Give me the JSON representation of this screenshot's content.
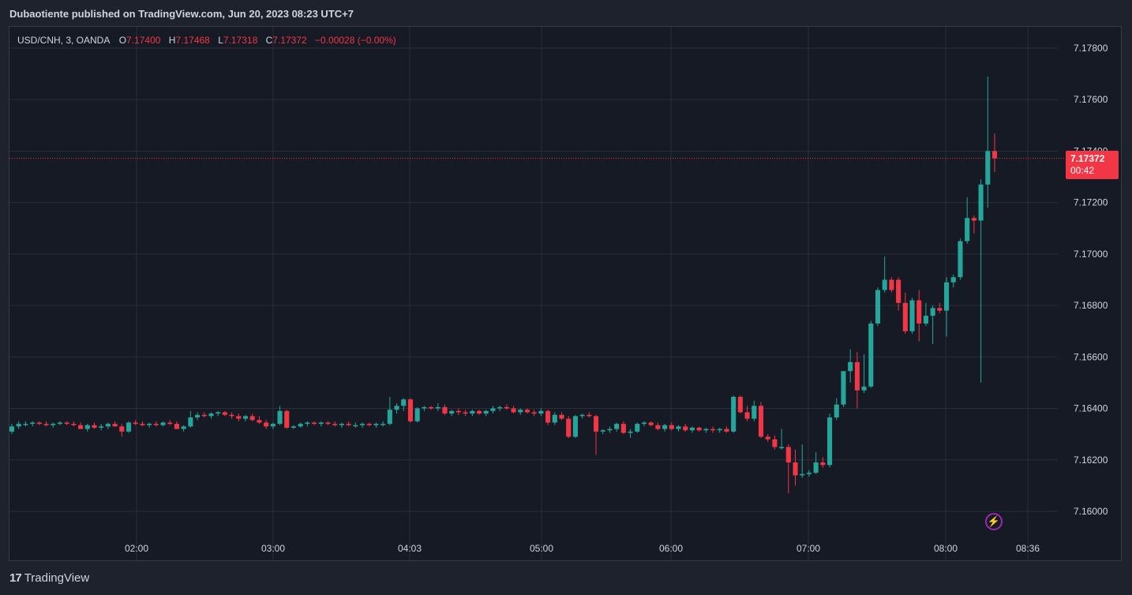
{
  "header": {
    "published_line": "Dubaotiente published on TradingView.com, Jun 20, 2023 08:23 UTC+7"
  },
  "legend": {
    "symbol": "USD/CNH, 3, OANDA",
    "o_label": "O",
    "o_value": "7.17400",
    "h_label": "H",
    "h_value": "7.17468",
    "l_label": "L",
    "l_value": "7.17318",
    "c_label": "C",
    "c_value": "7.17372",
    "change": "−0.00028 (−0.00%)"
  },
  "price_tag": {
    "price": "7.17372",
    "countdown": "00:42"
  },
  "footer": {
    "brand": "TradingView",
    "logo_glyph": "17"
  },
  "icons": {
    "bolt": "lightning-icon"
  },
  "colors": {
    "up": "#26a69a",
    "down": "#f23645",
    "background": "#161a25",
    "grid": "#2a2e39"
  },
  "chart_data": {
    "type": "candlestick",
    "title": "",
    "xlabel": "",
    "ylabel": "",
    "ylim": [
      7.1594,
      7.1792
    ],
    "y_ticks": [
      "7.17800",
      "7.17600",
      "7.17400",
      "7.17200",
      "7.17000",
      "7.16800",
      "7.16600",
      "7.16400",
      "7.16200",
      "7.16000"
    ],
    "x_ticks": [
      "02:00",
      "03:00",
      "04:03",
      "05:00",
      "06:00",
      "07:00",
      "08:00",
      "08:36"
    ],
    "last_price": 7.17372,
    "grid": true,
    "legend_position": "top-left",
    "candles": [
      [
        7.1631,
        7.1634,
        7.163,
        7.1633
      ],
      [
        7.1633,
        7.1635,
        7.1632,
        7.1634
      ],
      [
        7.1634,
        7.1635,
        7.1633,
        7.1634
      ],
      [
        7.1634,
        7.1635,
        7.1633,
        7.16345
      ],
      [
        7.16345,
        7.1635,
        7.16335,
        7.1634
      ],
      [
        7.1634,
        7.1635,
        7.1633,
        7.16335
      ],
      [
        7.16335,
        7.16345,
        7.16325,
        7.1634
      ],
      [
        7.1634,
        7.1635,
        7.16335,
        7.16345
      ],
      [
        7.16345,
        7.1635,
        7.16335,
        7.1634
      ],
      [
        7.1634,
        7.1635,
        7.1633,
        7.16335
      ],
      [
        7.16335,
        7.16345,
        7.1632,
        7.1632
      ],
      [
        7.1632,
        7.1634,
        7.1631,
        7.16335
      ],
      [
        7.16335,
        7.16345,
        7.1632,
        7.16325
      ],
      [
        7.16325,
        7.1634,
        7.16315,
        7.1633
      ],
      [
        7.1633,
        7.16345,
        7.1632,
        7.1634
      ],
      [
        7.1634,
        7.1635,
        7.1633,
        7.1633
      ],
      [
        7.1633,
        7.1634,
        7.1629,
        7.1631
      ],
      [
        7.1631,
        7.1635,
        7.16305,
        7.16345
      ],
      [
        7.16345,
        7.16355,
        7.16335,
        7.1634
      ],
      [
        7.1634,
        7.1635,
        7.1633,
        7.16335
      ],
      [
        7.16335,
        7.16345,
        7.16325,
        7.1634
      ],
      [
        7.1634,
        7.1635,
        7.1633,
        7.16335
      ],
      [
        7.16335,
        7.1635,
        7.1633,
        7.16345
      ],
      [
        7.16345,
        7.16355,
        7.16335,
        7.1634
      ],
      [
        7.1634,
        7.1635,
        7.1632,
        7.1632
      ],
      [
        7.1632,
        7.16335,
        7.1631,
        7.1633
      ],
      [
        7.1633,
        7.1639,
        7.16325,
        7.16365
      ],
      [
        7.16365,
        7.16385,
        7.16355,
        7.16375
      ],
      [
        7.16375,
        7.16385,
        7.16365,
        7.1637
      ],
      [
        7.1637,
        7.16385,
        7.1636,
        7.1638
      ],
      [
        7.1638,
        7.1639,
        7.1637,
        7.16385
      ],
      [
        7.16385,
        7.1639,
        7.1637,
        7.16375
      ],
      [
        7.16375,
        7.16385,
        7.1636,
        7.1637
      ],
      [
        7.1637,
        7.1638,
        7.1635,
        7.1636
      ],
      [
        7.1636,
        7.16375,
        7.1635,
        7.1637
      ],
      [
        7.1637,
        7.1638,
        7.1635,
        7.16355
      ],
      [
        7.16355,
        7.1637,
        7.1634,
        7.16345
      ],
      [
        7.16345,
        7.16355,
        7.1632,
        7.1633
      ],
      [
        7.1633,
        7.16345,
        7.1632,
        7.1634
      ],
      [
        7.1634,
        7.1641,
        7.16335,
        7.1639
      ],
      [
        7.1639,
        7.16395,
        7.1632,
        7.16325
      ],
      [
        7.16325,
        7.16335,
        7.1632,
        7.1633
      ],
      [
        7.1633,
        7.16345,
        7.16325,
        7.1634
      ],
      [
        7.1634,
        7.1635,
        7.1633,
        7.16345
      ],
      [
        7.16345,
        7.1635,
        7.16335,
        7.1634
      ],
      [
        7.1634,
        7.1635,
        7.1633,
        7.16345
      ],
      [
        7.16345,
        7.1635,
        7.16335,
        7.1634
      ],
      [
        7.1634,
        7.1635,
        7.1633,
        7.16335
      ],
      [
        7.16335,
        7.16345,
        7.16325,
        7.1634
      ],
      [
        7.1634,
        7.1635,
        7.1633,
        7.16335
      ],
      [
        7.16335,
        7.16345,
        7.16325,
        7.16335
      ],
      [
        7.16335,
        7.16345,
        7.16325,
        7.1634
      ],
      [
        7.1634,
        7.16345,
        7.1633,
        7.16335
      ],
      [
        7.16335,
        7.16345,
        7.16325,
        7.1634
      ],
      [
        7.1634,
        7.1635,
        7.1633,
        7.1634
      ],
      [
        7.1634,
        7.16445,
        7.16335,
        7.16395
      ],
      [
        7.16395,
        7.1642,
        7.1638,
        7.1641
      ],
      [
        7.1641,
        7.1644,
        7.1639,
        7.16435
      ],
      [
        7.16435,
        7.1644,
        7.16345,
        7.1635
      ],
      [
        7.1635,
        7.16405,
        7.16345,
        7.164
      ],
      [
        7.164,
        7.1641,
        7.1639,
        7.16405
      ],
      [
        7.16405,
        7.1641,
        7.16395,
        7.164
      ],
      [
        7.164,
        7.1642,
        7.1639,
        7.16405
      ],
      [
        7.16405,
        7.16415,
        7.16375,
        7.1638
      ],
      [
        7.1638,
        7.16395,
        7.1637,
        7.1639
      ],
      [
        7.1639,
        7.164,
        7.16375,
        7.16385
      ],
      [
        7.16385,
        7.16395,
        7.1637,
        7.1638
      ],
      [
        7.1638,
        7.16395,
        7.1637,
        7.1639
      ],
      [
        7.1639,
        7.16395,
        7.16375,
        7.1638
      ],
      [
        7.1638,
        7.16395,
        7.1637,
        7.1639
      ],
      [
        7.1639,
        7.1641,
        7.1638,
        7.164
      ],
      [
        7.164,
        7.1641,
        7.1639,
        7.16405
      ],
      [
        7.16405,
        7.16415,
        7.16395,
        7.164
      ],
      [
        7.164,
        7.1641,
        7.1638,
        7.16385
      ],
      [
        7.16385,
        7.164,
        7.16375,
        7.16395
      ],
      [
        7.16395,
        7.164,
        7.1638,
        7.16385
      ],
      [
        7.16385,
        7.16395,
        7.1637,
        7.1638
      ],
      [
        7.1638,
        7.164,
        7.1637,
        7.1639
      ],
      [
        7.1639,
        7.16395,
        7.16335,
        7.16345
      ],
      [
        7.16345,
        7.16385,
        7.16335,
        7.16375
      ],
      [
        7.16375,
        7.16385,
        7.16355,
        7.1636
      ],
      [
        7.1636,
        7.1637,
        7.16285,
        7.1629
      ],
      [
        7.1629,
        7.16375,
        7.16285,
        7.1637
      ],
      [
        7.1637,
        7.1638,
        7.1636,
        7.16375
      ],
      [
        7.16375,
        7.16385,
        7.16365,
        7.1637
      ],
      [
        7.1637,
        7.16375,
        7.1622,
        7.1631
      ],
      [
        7.1631,
        7.1632,
        7.163,
        7.16315
      ],
      [
        7.16315,
        7.1633,
        7.16305,
        7.1632
      ],
      [
        7.1632,
        7.16345,
        7.1631,
        7.1634
      ],
      [
        7.1634,
        7.1635,
        7.163,
        7.16305
      ],
      [
        7.16305,
        7.1632,
        7.16285,
        7.1631
      ],
      [
        7.1631,
        7.16345,
        7.16305,
        7.1634
      ],
      [
        7.1634,
        7.1635,
        7.1633,
        7.16345
      ],
      [
        7.16345,
        7.1635,
        7.1633,
        7.16335
      ],
      [
        7.16335,
        7.16345,
        7.16315,
        7.1632
      ],
      [
        7.1632,
        7.1634,
        7.1631,
        7.16335
      ],
      [
        7.16335,
        7.16345,
        7.16315,
        7.1632
      ],
      [
        7.1632,
        7.16335,
        7.1631,
        7.1633
      ],
      [
        7.1633,
        7.1634,
        7.1631,
        7.16315
      ],
      [
        7.16315,
        7.1633,
        7.16305,
        7.16325
      ],
      [
        7.16325,
        7.1633,
        7.1631,
        7.16315
      ],
      [
        7.16315,
        7.16325,
        7.16305,
        7.1632
      ],
      [
        7.1632,
        7.1633,
        7.16305,
        7.16315
      ],
      [
        7.16315,
        7.16325,
        7.16305,
        7.1632
      ],
      [
        7.1632,
        7.1633,
        7.16305,
        7.1631
      ],
      [
        7.1631,
        7.1645,
        7.16305,
        7.16445
      ],
      [
        7.16445,
        7.1645,
        7.1638,
        7.16385
      ],
      [
        7.16385,
        7.1641,
        7.1635,
        7.1636
      ],
      [
        7.1636,
        7.1643,
        7.1635,
        7.1641
      ],
      [
        7.1641,
        7.16425,
        7.16285,
        7.1629
      ],
      [
        7.1629,
        7.163,
        7.1627,
        7.1628
      ],
      [
        7.1628,
        7.16295,
        7.1624,
        7.1625
      ],
      [
        7.1625,
        7.1632,
        7.1624,
        7.1625
      ],
      [
        7.1625,
        7.1626,
        7.1607,
        7.1619
      ],
      [
        7.1619,
        7.1624,
        7.161,
        7.1614
      ],
      [
        7.1614,
        7.1626,
        7.1613,
        7.16145
      ],
      [
        7.16145,
        7.1616,
        7.16135,
        7.1615
      ],
      [
        7.1615,
        7.1623,
        7.16145,
        7.1619
      ],
      [
        7.1619,
        7.1621,
        7.1617,
        7.1618
      ],
      [
        7.1618,
        7.1638,
        7.1617,
        7.16365
      ],
      [
        7.16365,
        7.1644,
        7.16355,
        7.16415
      ],
      [
        7.16415,
        7.16535,
        7.16405,
        7.16545
      ],
      [
        7.16545,
        7.1663,
        7.165,
        7.1658
      ],
      [
        7.1658,
        7.1662,
        7.164,
        7.1647
      ],
      [
        7.1647,
        7.1661,
        7.1646,
        7.16485
      ],
      [
        7.16485,
        7.1674,
        7.1648,
        7.1673
      ],
      [
        7.1673,
        7.1687,
        7.1672,
        7.1686
      ],
      [
        7.1686,
        7.1699,
        7.1685,
        7.169
      ],
      [
        7.169,
        7.1691,
        7.1685,
        7.1686
      ],
      [
        7.169,
        7.1691,
        7.1678,
        7.1681
      ],
      [
        7.1681,
        7.1685,
        7.1669,
        7.167
      ],
      [
        7.167,
        7.1683,
        7.1669,
        7.1682
      ],
      [
        7.1682,
        7.1686,
        7.1666,
        7.1673
      ],
      [
        7.1673,
        7.1681,
        7.1672,
        7.1676
      ],
      [
        7.1676,
        7.168,
        7.1665,
        7.1679
      ],
      [
        7.1679,
        7.1681,
        7.1677,
        7.1678
      ],
      [
        7.1678,
        7.1691,
        7.1668,
        7.1689
      ],
      [
        7.1689,
        7.1692,
        7.1687,
        7.1691
      ],
      [
        7.1691,
        7.1706,
        7.169,
        7.1705
      ],
      [
        7.1705,
        7.1722,
        7.1704,
        7.1714
      ],
      [
        7.1714,
        7.1715,
        7.1708,
        7.1713
      ],
      [
        7.1713,
        7.1729,
        7.165,
        7.1727
      ],
      [
        7.1727,
        7.1769,
        7.1718,
        7.174
      ],
      [
        7.174,
        7.17468,
        7.17318,
        7.17372
      ]
    ]
  }
}
